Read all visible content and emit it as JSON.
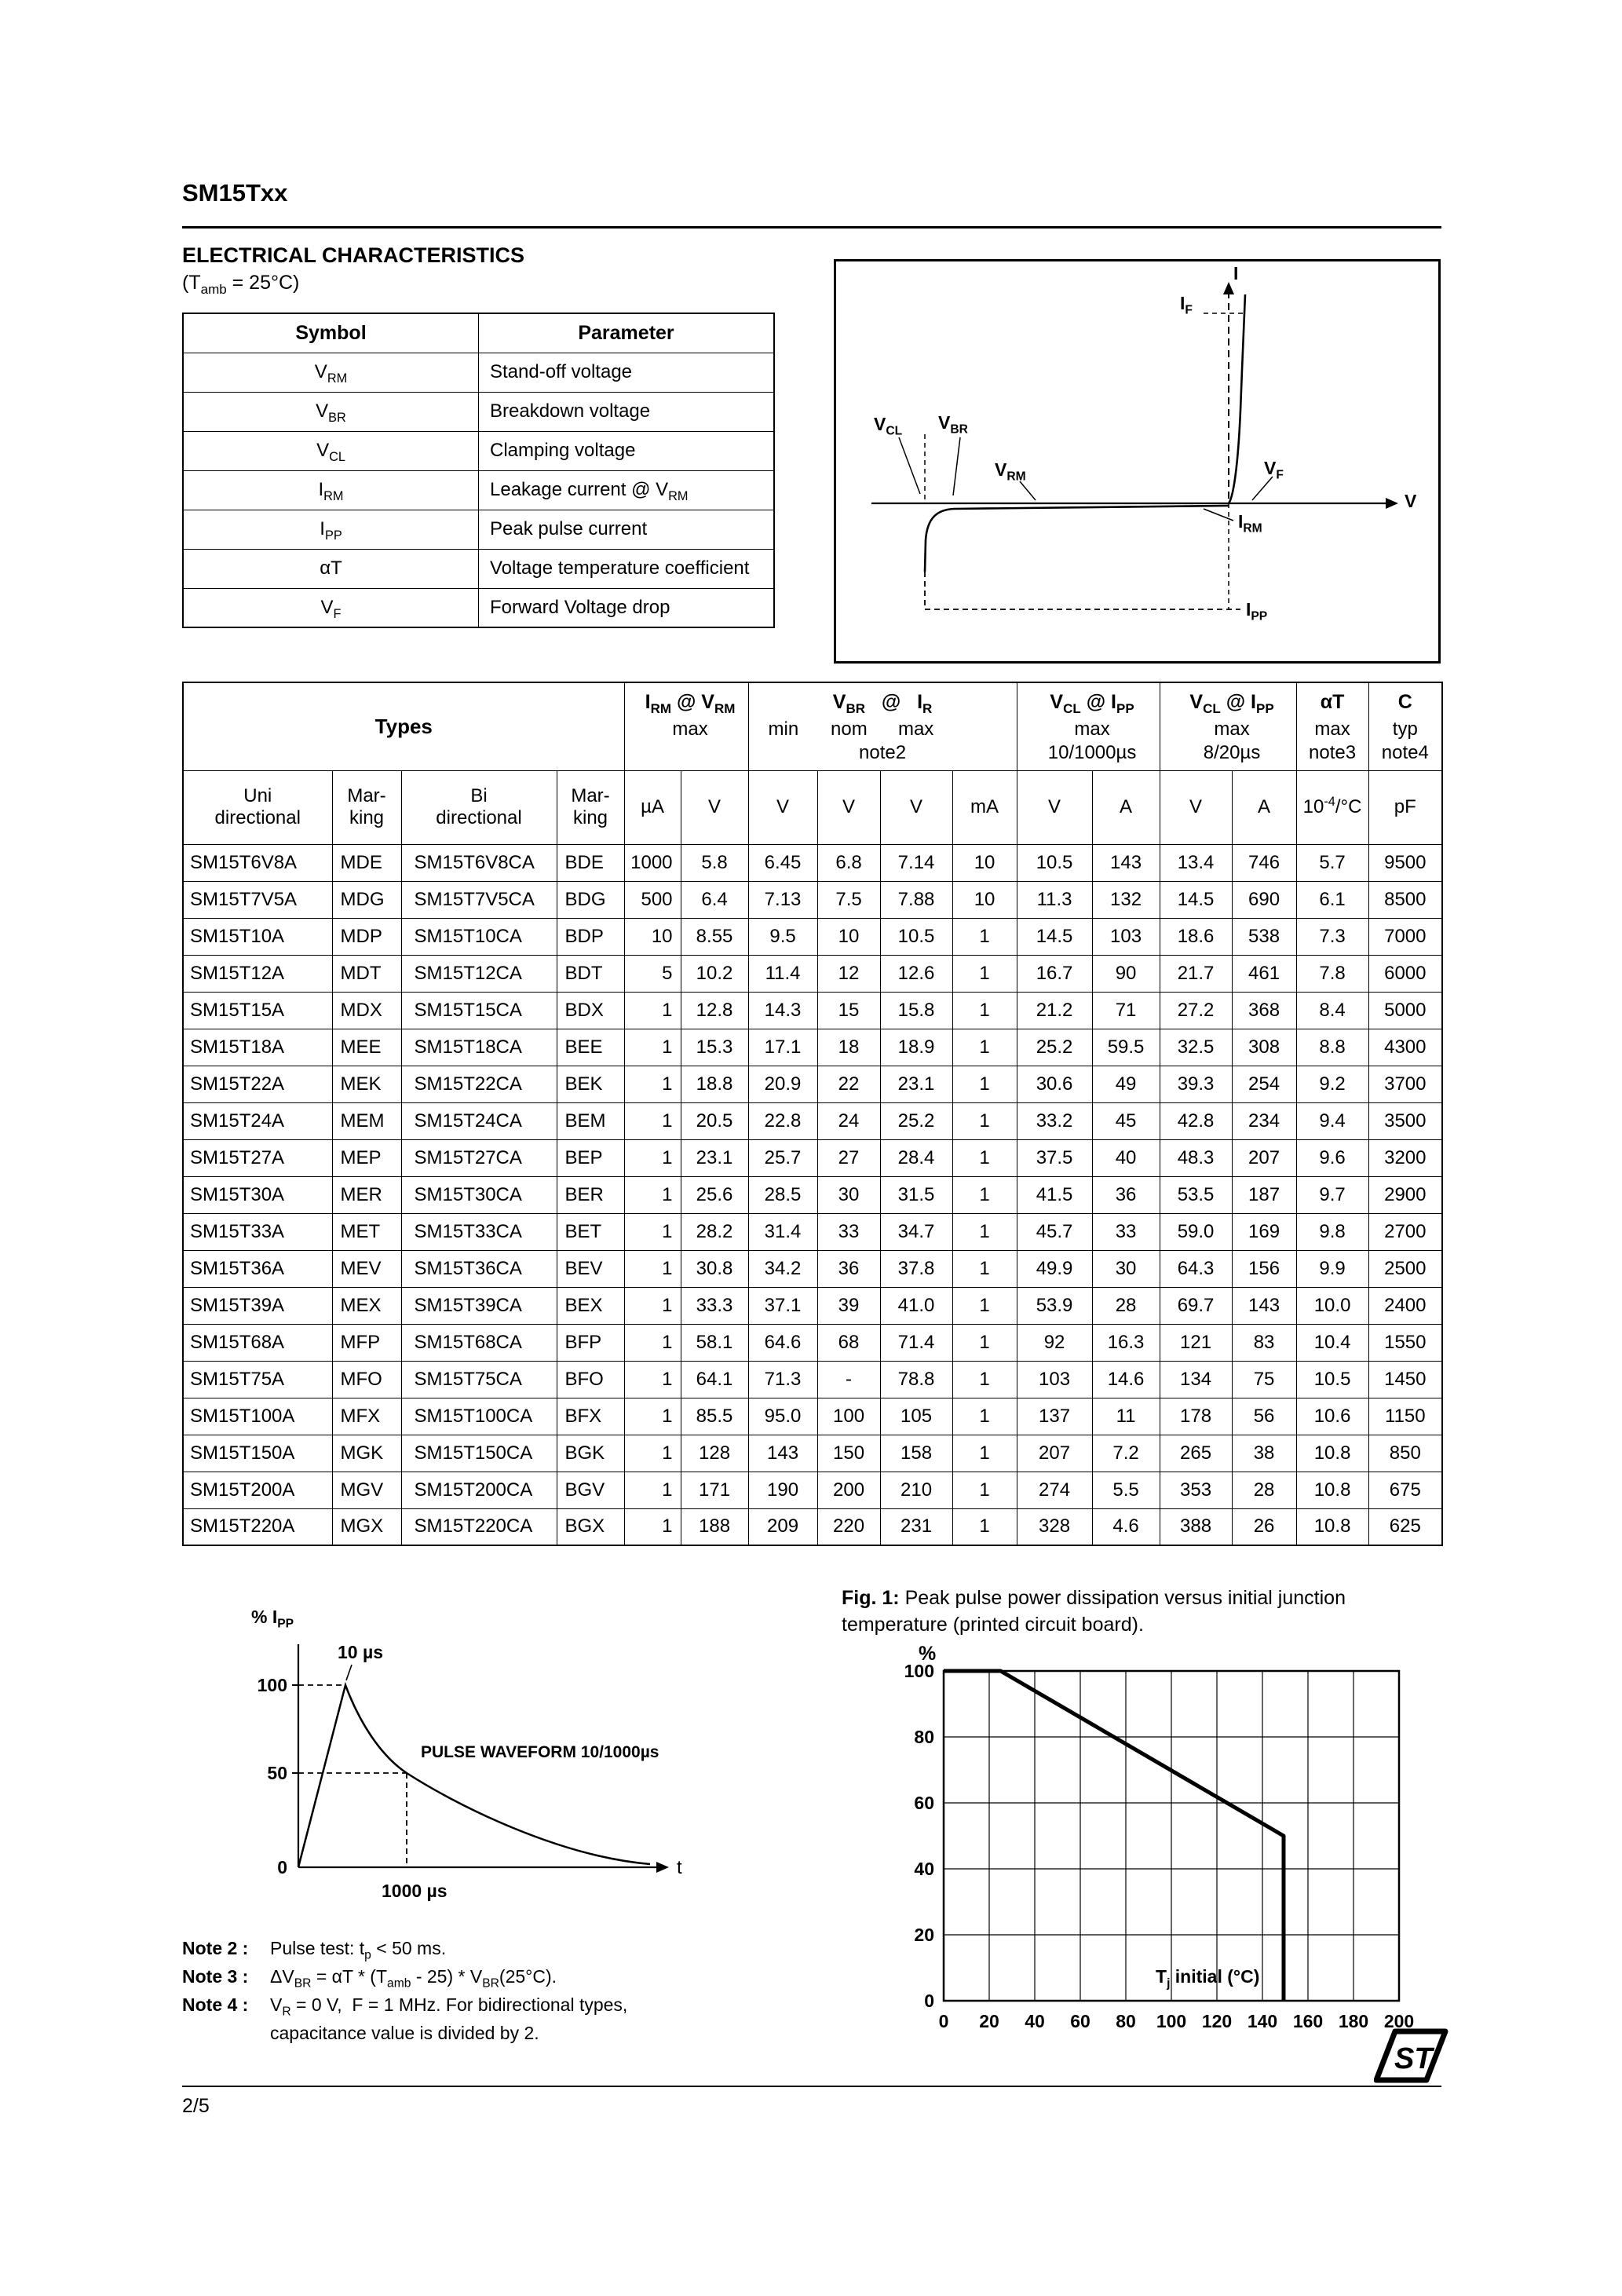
{
  "header": {
    "title": "SM15Txx"
  },
  "section": {
    "heading": "ELECTRICAL CHARACTERISTICS",
    "subheading": "(T<sub>amb</sub> = 25°C)"
  },
  "symbol_table": {
    "headers": [
      "Symbol",
      "Parameter"
    ],
    "rows": [
      {
        "symbol": "V<sub>RM</sub>",
        "parameter": "Stand-off voltage"
      },
      {
        "symbol": "V<sub>BR</sub>",
        "parameter": "Breakdown voltage"
      },
      {
        "symbol": "V<sub>CL</sub>",
        "parameter": "Clamping voltage"
      },
      {
        "symbol": "I<sub>RM</sub>",
        "parameter": "Leakage current @ V<sub>RM</sub>"
      },
      {
        "symbol": "I<sub>PP</sub>",
        "parameter": "Peak pulse current"
      },
      {
        "symbol": "αT",
        "parameter": "Voltage temperature coefficient"
      },
      {
        "symbol": "V<sub>F</sub>",
        "parameter": "Forward Voltage drop"
      }
    ]
  },
  "iv_diagram": {
    "labels": {
      "i": "I",
      "if": "I<sub>F</sub>",
      "vcl": "V<sub>CL</sub>",
      "vbr": "V<sub>BR</sub>",
      "vrm": "V<sub>RM</sub>",
      "vf": "V<sub>F</sub>",
      "v": "V",
      "irm": "I<sub>RM</sub>",
      "ipp": "I<sub>PP</sub>"
    }
  },
  "main_table": {
    "group_types": "Types",
    "group_irm": {
      "line1": "I<sub>RM</sub> @ V<sub>RM</sub>",
      "line2": "max"
    },
    "group_vbr": {
      "line1": "V<sub>BR</sub>&nbsp;&nbsp;&nbsp;@&nbsp;&nbsp;&nbsp;I<sub>R</sub>",
      "min": "min",
      "nom": "nom",
      "max": "max",
      "note": "note2"
    },
    "group_vcl10": {
      "line1": "V<sub>CL</sub> @ I<sub>PP</sub>",
      "line2": "max",
      "line3": "10/1000µs"
    },
    "group_vcl8": {
      "line1": "V<sub>CL</sub> @ I<sub>PP</sub>",
      "line2": "max",
      "line3": "8/20µs"
    },
    "group_alpha": {
      "line1": "αT",
      "line2": "max",
      "line3": "note3"
    },
    "group_c": {
      "line1": "C",
      "line2": "typ",
      "line3": "note4"
    },
    "col_headers": [
      "Uni<br>directional",
      "Mar-<br>king",
      "Bi<br>directional",
      "Mar-<br>king"
    ],
    "units": [
      "µA",
      "V",
      "V",
      "V",
      "V",
      "mA",
      "V",
      "A",
      "V",
      "A",
      "10<sup>-4</sup>/°C",
      "pF"
    ],
    "rows": [
      [
        "SM15T6V8A",
        "MDE",
        "SM15T6V8CA",
        "BDE",
        "1000",
        "5.8",
        "6.45",
        "6.8",
        "7.14",
        "10",
        "10.5",
        "143",
        "13.4",
        "746",
        "5.7",
        "9500"
      ],
      [
        "SM15T7V5A",
        "MDG",
        "SM15T7V5CA",
        "BDG",
        "500",
        "6.4",
        "7.13",
        "7.5",
        "7.88",
        "10",
        "11.3",
        "132",
        "14.5",
        "690",
        "6.1",
        "8500"
      ],
      [
        "SM15T10A",
        "MDP",
        "SM15T10CA",
        "BDP",
        "10",
        "8.55",
        "9.5",
        "10",
        "10.5",
        "1",
        "14.5",
        "103",
        "18.6",
        "538",
        "7.3",
        "7000"
      ],
      [
        "SM15T12A",
        "MDT",
        "SM15T12CA",
        "BDT",
        "5",
        "10.2",
        "11.4",
        "12",
        "12.6",
        "1",
        "16.7",
        "90",
        "21.7",
        "461",
        "7.8",
        "6000"
      ],
      [
        "SM15T15A",
        "MDX",
        "SM15T15CA",
        "BDX",
        "1",
        "12.8",
        "14.3",
        "15",
        "15.8",
        "1",
        "21.2",
        "71",
        "27.2",
        "368",
        "8.4",
        "5000"
      ],
      [
        "SM15T18A",
        "MEE",
        "SM15T18CA",
        "BEE",
        "1",
        "15.3",
        "17.1",
        "18",
        "18.9",
        "1",
        "25.2",
        "59.5",
        "32.5",
        "308",
        "8.8",
        "4300"
      ],
      [
        "SM15T22A",
        "MEK",
        "SM15T22CA",
        "BEK",
        "1",
        "18.8",
        "20.9",
        "22",
        "23.1",
        "1",
        "30.6",
        "49",
        "39.3",
        "254",
        "9.2",
        "3700"
      ],
      [
        "SM15T24A",
        "MEM",
        "SM15T24CA",
        "BEM",
        "1",
        "20.5",
        "22.8",
        "24",
        "25.2",
        "1",
        "33.2",
        "45",
        "42.8",
        "234",
        "9.4",
        "3500"
      ],
      [
        "SM15T27A",
        "MEP",
        "SM15T27CA",
        "BEP",
        "1",
        "23.1",
        "25.7",
        "27",
        "28.4",
        "1",
        "37.5",
        "40",
        "48.3",
        "207",
        "9.6",
        "3200"
      ],
      [
        "SM15T30A",
        "MER",
        "SM15T30CA",
        "BER",
        "1",
        "25.6",
        "28.5",
        "30",
        "31.5",
        "1",
        "41.5",
        "36",
        "53.5",
        "187",
        "9.7",
        "2900"
      ],
      [
        "SM15T33A",
        "MET",
        "SM15T33CA",
        "BET",
        "1",
        "28.2",
        "31.4",
        "33",
        "34.7",
        "1",
        "45.7",
        "33",
        "59.0",
        "169",
        "9.8",
        "2700"
      ],
      [
        "SM15T36A",
        "MEV",
        "SM15T36CA",
        "BEV",
        "1",
        "30.8",
        "34.2",
        "36",
        "37.8",
        "1",
        "49.9",
        "30",
        "64.3",
        "156",
        "9.9",
        "2500"
      ],
      [
        "SM15T39A",
        "MEX",
        "SM15T39CA",
        "BEX",
        "1",
        "33.3",
        "37.1",
        "39",
        "41.0",
        "1",
        "53.9",
        "28",
        "69.7",
        "143",
        "10.0",
        "2400"
      ],
      [
        "SM15T68A",
        "MFP",
        "SM15T68CA",
        "BFP",
        "1",
        "58.1",
        "64.6",
        "68",
        "71.4",
        "1",
        "92",
        "16.3",
        "121",
        "83",
        "10.4",
        "1550"
      ],
      [
        "SM15T75A",
        "MFO",
        "SM15T75CA",
        "BFO",
        "1",
        "64.1",
        "71.3",
        "-",
        "78.8",
        "1",
        "103",
        "14.6",
        "134",
        "75",
        "10.5",
        "1450"
      ],
      [
        "SM15T100A",
        "MFX",
        "SM15T100CA",
        "BFX",
        "1",
        "85.5",
        "95.0",
        "100",
        "105",
        "1",
        "137",
        "11",
        "178",
        "56",
        "10.6",
        "1150"
      ],
      [
        "SM15T150A",
        "MGK",
        "SM15T150CA",
        "BGK",
        "1",
        "128",
        "143",
        "150",
        "158",
        "1",
        "207",
        "7.2",
        "265",
        "38",
        "10.8",
        "850"
      ],
      [
        "SM15T200A",
        "MGV",
        "SM15T200CA",
        "BGV",
        "1",
        "171",
        "190",
        "200",
        "210",
        "1",
        "274",
        "5.5",
        "353",
        "28",
        "10.8",
        "675"
      ],
      [
        "SM15T220A",
        "MGX",
        "SM15T220CA",
        "BGX",
        "1",
        "188",
        "209",
        "220",
        "231",
        "1",
        "328",
        "4.6",
        "388",
        "26",
        "10.8",
        "625"
      ]
    ]
  },
  "pulse_chart": {
    "y_axis_label": "% I<sub>PP</sub>",
    "yticks": [
      "100",
      "50",
      "0"
    ],
    "peak_label": "10 µs",
    "waveform_label": "PULSE WAVEFORM 10/1000µs",
    "fall_label": "1000 µs",
    "x_axis_label": "t"
  },
  "fig1": {
    "caption_prefix": "Fig. 1:",
    "caption_text": "Peak pulse power dissipation versus initial junction temperature (printed circuit board).",
    "y_axis_label": "%",
    "x_axis_label": "T<sub>j</sub> initial (°C)",
    "xticks": [
      "0",
      "20",
      "40",
      "60",
      "80",
      "100",
      "120",
      "140",
      "160",
      "180",
      "200"
    ],
    "yticks": [
      "0",
      "20",
      "40",
      "60",
      "80",
      "100"
    ]
  },
  "notes": [
    {
      "label": "Note 2 :",
      "text": "Pulse test: t<sub>p</sub> &lt; 50 ms."
    },
    {
      "label": "Note 3 :",
      "text": "ΔV<sub>BR</sub> = αT * (T<sub>amb</sub> - 25) * V<sub>BR</sub>(25°C)."
    },
    {
      "label": "Note 4 :",
      "text": "V<sub>R</sub> = 0 V,  F = 1 MHz. For bidirectional types,"
    },
    {
      "label": "",
      "text": "capacitance value is divided by 2."
    }
  ],
  "footer": {
    "page_number": "2/5",
    "logo_text": "ST"
  },
  "chart_data": [
    {
      "type": "line",
      "title": "Pulse waveform 10/1000µs",
      "xlabel": "t (µs)",
      "ylabel": "% Ipp",
      "x": [
        0,
        10,
        1000
      ],
      "y": [
        0,
        100,
        50
      ],
      "annotations": [
        "peak 100% at 10 µs",
        "50% at 1000 µs"
      ],
      "grid": false
    },
    {
      "type": "line",
      "title": "Fig. 1: Peak pulse power dissipation versus initial junction temperature (printed circuit board)",
      "xlabel": "Tj initial (°C)",
      "ylabel": "%",
      "xlim": [
        0,
        200
      ],
      "ylim": [
        0,
        100
      ],
      "x": [
        0,
        25,
        150,
        150
      ],
      "y": [
        100,
        100,
        50,
        0
      ],
      "xticks": [
        0,
        20,
        40,
        60,
        80,
        100,
        120,
        140,
        160,
        180,
        200
      ],
      "yticks": [
        0,
        20,
        40,
        60,
        80,
        100
      ],
      "grid": true
    }
  ]
}
